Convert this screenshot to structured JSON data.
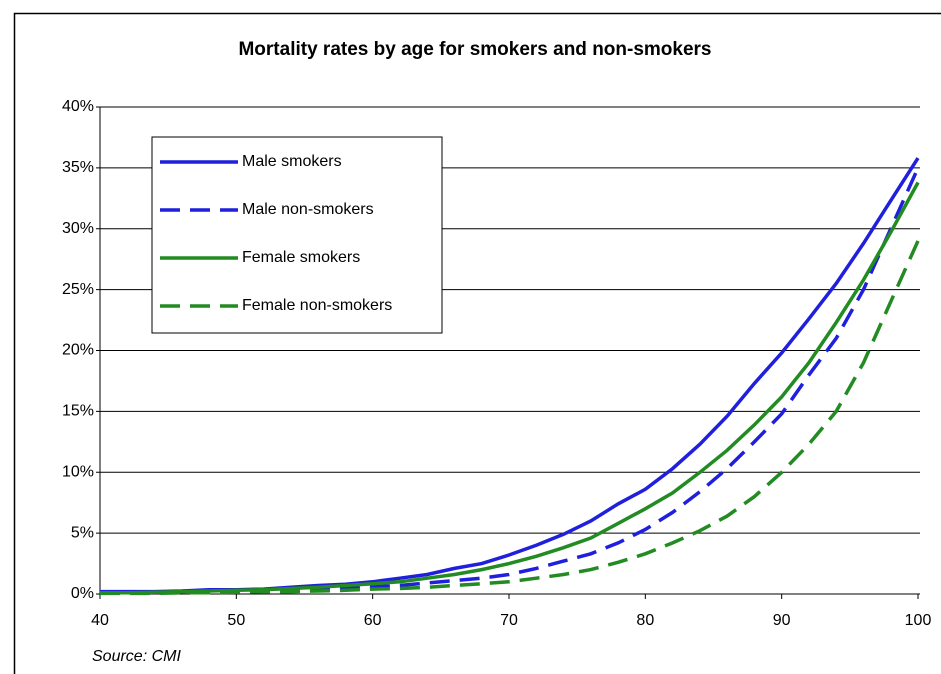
{
  "chart_data": {
    "type": "line",
    "title": "Mortality rates by age for smokers and non-smokers",
    "source": "Source: CMI",
    "x": [
      40,
      42,
      44,
      46,
      48,
      50,
      52,
      54,
      56,
      58,
      60,
      62,
      64,
      66,
      68,
      70,
      72,
      74,
      76,
      78,
      80,
      82,
      84,
      86,
      88,
      90,
      92,
      94,
      96,
      98,
      100
    ],
    "series": [
      {
        "name": "Male smokers",
        "color": "#1f1fdd",
        "dash": false,
        "values": [
          0.2,
          0.2,
          0.2,
          0.25,
          0.35,
          0.35,
          0.4,
          0.55,
          0.7,
          0.8,
          1.0,
          1.3,
          1.6,
          2.1,
          2.5,
          3.2,
          4.0,
          4.9,
          6.0,
          7.4,
          8.6,
          10.3,
          12.3,
          14.6,
          17.3,
          19.8,
          22.6,
          25.5,
          28.8,
          32.3,
          35.8
        ]
      },
      {
        "name": "Male non-smokers",
        "color": "#1f1fdd",
        "dash": true,
        "values": [
          0.1,
          0.1,
          0.1,
          0.1,
          0.15,
          0.2,
          0.25,
          0.3,
          0.4,
          0.5,
          0.6,
          0.7,
          0.9,
          1.1,
          1.3,
          1.6,
          2.1,
          2.7,
          3.3,
          4.2,
          5.3,
          6.7,
          8.4,
          10.3,
          12.5,
          14.8,
          18,
          21,
          25,
          30,
          35
        ]
      },
      {
        "name": "Female smokers",
        "color": "#228b22",
        "dash": false,
        "values": [
          0.1,
          0.1,
          0.15,
          0.2,
          0.25,
          0.3,
          0.35,
          0.45,
          0.55,
          0.7,
          0.85,
          1.0,
          1.3,
          1.6,
          2.0,
          2.5,
          3.1,
          3.8,
          4.6,
          5.8,
          7.0,
          8.3,
          10.0,
          11.8,
          13.9,
          16.2,
          19,
          22.3,
          25.8,
          29.7,
          33.8
        ]
      },
      {
        "name": "Female non-smokers",
        "color": "#228b22",
        "dash": true,
        "values": [
          0.05,
          0.05,
          0.05,
          0.1,
          0.1,
          0.15,
          0.2,
          0.2,
          0.25,
          0.3,
          0.4,
          0.45,
          0.55,
          0.7,
          0.85,
          1.0,
          1.3,
          1.6,
          2.0,
          2.6,
          3.3,
          4.2,
          5.2,
          6.4,
          8.0,
          10,
          12.3,
          15,
          19,
          24,
          29
        ]
      }
    ],
    "xlim": [
      40,
      100
    ],
    "xticks": [
      40,
      50,
      60,
      70,
      80,
      90,
      100
    ],
    "ylim": [
      0,
      40
    ],
    "yticks": [
      {
        "value": 0,
        "label": "0%"
      },
      {
        "value": 5,
        "label": "5%"
      },
      {
        "value": 10,
        "label": "10%"
      },
      {
        "value": 15,
        "label": "15%"
      },
      {
        "value": 20,
        "label": "20%"
      },
      {
        "value": 25,
        "label": "25%"
      },
      {
        "value": 30,
        "label": "30%"
      },
      {
        "value": 35,
        "label": "35%"
      },
      {
        "value": 40,
        "label": "40%"
      }
    ],
    "grid": true
  }
}
